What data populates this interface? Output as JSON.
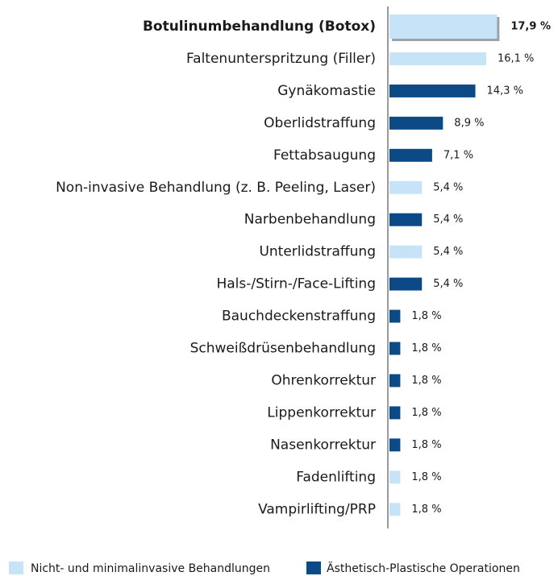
{
  "chart_data": {
    "type": "barh",
    "categories": [
      "Botulinumbehandlung (Botox)",
      "Faltenunterspritzung (Filler)",
      "Gynäkomastie",
      "Oberlidstraffung",
      "Fettabsaugung",
      "Non-invasive Behandlung (z. B. Peeling, Laser)",
      "Narbenbehandlung",
      "Unterlidstraffung",
      "Hals-/Stirn-/Face-Lifting",
      "Bauchdeckenstraffung",
      "Schweißdrüsenbehandlung",
      "Ohrenkorrektur",
      "Lippenkorrektur",
      "Nasenkorrektur",
      "Fadenlifting",
      "Vampirlifting/PRP"
    ],
    "series": [
      {
        "name": "Nicht- und minimalinvasive Behandlungen",
        "color": "#c6e3f7",
        "values": [
          17.9,
          16.1,
          null,
          null,
          null,
          5.4,
          null,
          5.4,
          null,
          null,
          null,
          null,
          null,
          null,
          1.8,
          1.8
        ],
        "value_labels": [
          "17,9 %",
          "16,1 %",
          null,
          null,
          null,
          "5,4 %",
          null,
          "5,4 %",
          null,
          null,
          null,
          null,
          null,
          null,
          "1,8 %",
          "1,8 %"
        ]
      },
      {
        "name": "Ästhetisch-Plastische Operationen",
        "color": "#0c4a87",
        "values": [
          null,
          null,
          14.3,
          8.9,
          7.1,
          null,
          5.4,
          null,
          5.4,
          1.8,
          1.8,
          1.8,
          1.8,
          1.8,
          null,
          null
        ],
        "value_labels": [
          null,
          null,
          "14,3 %",
          "8,9 %",
          "7,1 %",
          null,
          "5,4 %",
          null,
          "5,4 %",
          "1,8 %",
          "1,8 %",
          "1,8 %",
          "1,8 %",
          "1,8 %",
          null,
          null
        ]
      }
    ],
    "xlim": [
      0,
      20
    ],
    "highlight_index": 0,
    "legend": "bottom"
  }
}
